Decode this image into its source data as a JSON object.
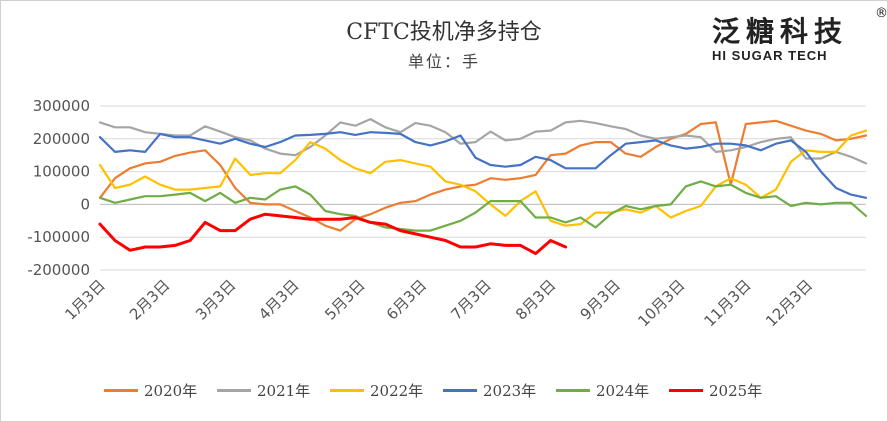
{
  "header": {
    "title": "CFTC投机净多持仓",
    "subtitle": "单位：手"
  },
  "logo": {
    "name_cn": "泛糖科技",
    "name_en": "HI SUGAR TECH",
    "registered_mark": "®"
  },
  "chart_data": {
    "type": "line",
    "title": "CFTC投机净多持仓",
    "ylabel": "单位：手",
    "ylim": [
      -200000,
      300000
    ],
    "yticks": [
      -200000,
      -100000,
      0,
      100000,
      200000,
      300000
    ],
    "ytick_labels": [
      "-200000",
      "-100000",
      "0",
      "100000",
      "200000",
      "300000"
    ],
    "x_weeks": 52,
    "xtick_positions": [
      0,
      4.3,
      8.7,
      12.9,
      17.3,
      21.4,
      25.7,
      30,
      34.3,
      38.6,
      43,
      47.1
    ],
    "xtick_labels": [
      "1月3日",
      "2月3日",
      "3月3日",
      "4月3日",
      "5月3日",
      "6月3日",
      "7月3日",
      "8月3日",
      "9月3日",
      "10月3日",
      "11月3日",
      "12月3日"
    ],
    "grid": "horizontal",
    "legend_position": "bottom",
    "series": [
      {
        "name": "2020年",
        "color": "#ed7d31",
        "values": [
          20000,
          80000,
          110000,
          125000,
          130000,
          148000,
          158000,
          165000,
          120000,
          50000,
          5000,
          0,
          0,
          -20000,
          -40000,
          -65000,
          -80000,
          -45000,
          -30000,
          -10000,
          5000,
          10000,
          30000,
          45000,
          55000,
          60000,
          80000,
          75000,
          80000,
          90000,
          150000,
          155000,
          180000,
          190000,
          190000,
          155000,
          145000,
          175000,
          200000,
          215000,
          245000,
          250000,
          60000,
          245000,
          250000,
          255000,
          240000,
          225000,
          215000,
          195000,
          200000,
          210000
        ]
      },
      {
        "name": "2021年",
        "color": "#a5a5a5",
        "values": [
          250000,
          235000,
          235000,
          220000,
          215000,
          210000,
          210000,
          238000,
          222000,
          205000,
          195000,
          170000,
          155000,
          150000,
          175000,
          210000,
          250000,
          240000,
          260000,
          235000,
          220000,
          248000,
          240000,
          220000,
          185000,
          190000,
          222000,
          195000,
          200000,
          222000,
          225000,
          250000,
          255000,
          248000,
          238000,
          230000,
          210000,
          200000,
          205000,
          210000,
          205000,
          160000,
          165000,
          175000,
          190000,
          200000,
          205000,
          140000,
          140000,
          160000,
          145000,
          125000
        ]
      },
      {
        "name": "2022年",
        "color": "#ffc000",
        "values": [
          120000,
          50000,
          60000,
          85000,
          60000,
          45000,
          45000,
          50000,
          55000,
          140000,
          90000,
          95000,
          95000,
          135000,
          190000,
          170000,
          135000,
          110000,
          95000,
          130000,
          135000,
          125000,
          115000,
          70000,
          60000,
          40000,
          0,
          -35000,
          10000,
          40000,
          -50000,
          -65000,
          -60000,
          -25000,
          -25000,
          -15000,
          -25000,
          -5000,
          -40000,
          -20000,
          -5000,
          55000,
          80000,
          60000,
          20000,
          45000,
          130000,
          165000,
          160000,
          160000,
          210000,
          225000
        ]
      },
      {
        "name": "2023年",
        "color": "#4472c4",
        "values": [
          205000,
          160000,
          165000,
          160000,
          215000,
          205000,
          205000,
          195000,
          185000,
          200000,
          185000,
          175000,
          190000,
          210000,
          212000,
          215000,
          220000,
          212000,
          220000,
          218000,
          215000,
          190000,
          180000,
          192000,
          210000,
          142000,
          120000,
          115000,
          120000,
          145000,
          135000,
          110000,
          110000,
          110000,
          150000,
          185000,
          190000,
          195000,
          180000,
          170000,
          175000,
          185000,
          185000,
          180000,
          165000,
          185000,
          195000,
          160000,
          100000,
          50000,
          30000,
          20000
        ]
      },
      {
        "name": "2024年",
        "color": "#70ad47",
        "values": [
          20000,
          5000,
          15000,
          25000,
          25000,
          30000,
          35000,
          10000,
          35000,
          5000,
          20000,
          15000,
          45000,
          55000,
          30000,
          -20000,
          -30000,
          -35000,
          -55000,
          -70000,
          -75000,
          -80000,
          -80000,
          -65000,
          -50000,
          -25000,
          10000,
          10000,
          10000,
          -40000,
          -40000,
          -55000,
          -40000,
          -70000,
          -30000,
          -5000,
          -15000,
          -5000,
          0,
          55000,
          70000,
          55000,
          60000,
          35000,
          20000,
          25000,
          -5000,
          5000,
          0,
          5000,
          5000,
          -35000
        ]
      },
      {
        "name": "2025年",
        "color": "#ff0000",
        "values": [
          -60000,
          -110000,
          -140000,
          -130000,
          -130000,
          -125000,
          -110000,
          -55000,
          -80000,
          -80000,
          -45000,
          -30000,
          -35000,
          -40000,
          -45000,
          -45000,
          -45000,
          -40000,
          -55000,
          -60000,
          -80000,
          -90000,
          -100000,
          -110000,
          -130000,
          -130000,
          -120000,
          -125000,
          -125000,
          -150000,
          -110000,
          -130000
        ]
      }
    ]
  }
}
